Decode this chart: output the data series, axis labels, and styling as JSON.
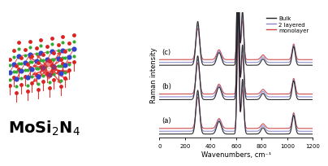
{
  "xlabel": "Wavenumbers, cm⁻¹",
  "ylabel": "Raman intensity",
  "xlim": [
    0,
    1200
  ],
  "legend_labels": [
    "Bulk",
    "2 layered",
    "monolayer"
  ],
  "legend_colors": [
    "#222222",
    "#8888cc",
    "#cc4444"
  ],
  "group_labels": [
    "(a)",
    "(b)",
    "(c)"
  ],
  "group_offsets": [
    0.0,
    2.2,
    4.4
  ],
  "line_offsets": [
    0.0,
    0.18,
    0.36
  ],
  "peaks": {
    "positions": [
      300,
      460,
      475,
      615,
      650,
      810,
      1050
    ],
    "heights_bulk": [
      2.8,
      0.5,
      0.4,
      8.0,
      3.5,
      0.4,
      1.2
    ],
    "heights_2layer": [
      2.4,
      0.45,
      0.35,
      7.0,
      3.0,
      0.35,
      1.1
    ],
    "heights_mono": [
      2.0,
      0.4,
      0.3,
      6.0,
      2.5,
      0.3,
      1.0
    ]
  },
  "peak_widths": [
    14,
    16,
    16,
    8,
    10,
    16,
    12
  ],
  "background_color": "#ffffff"
}
